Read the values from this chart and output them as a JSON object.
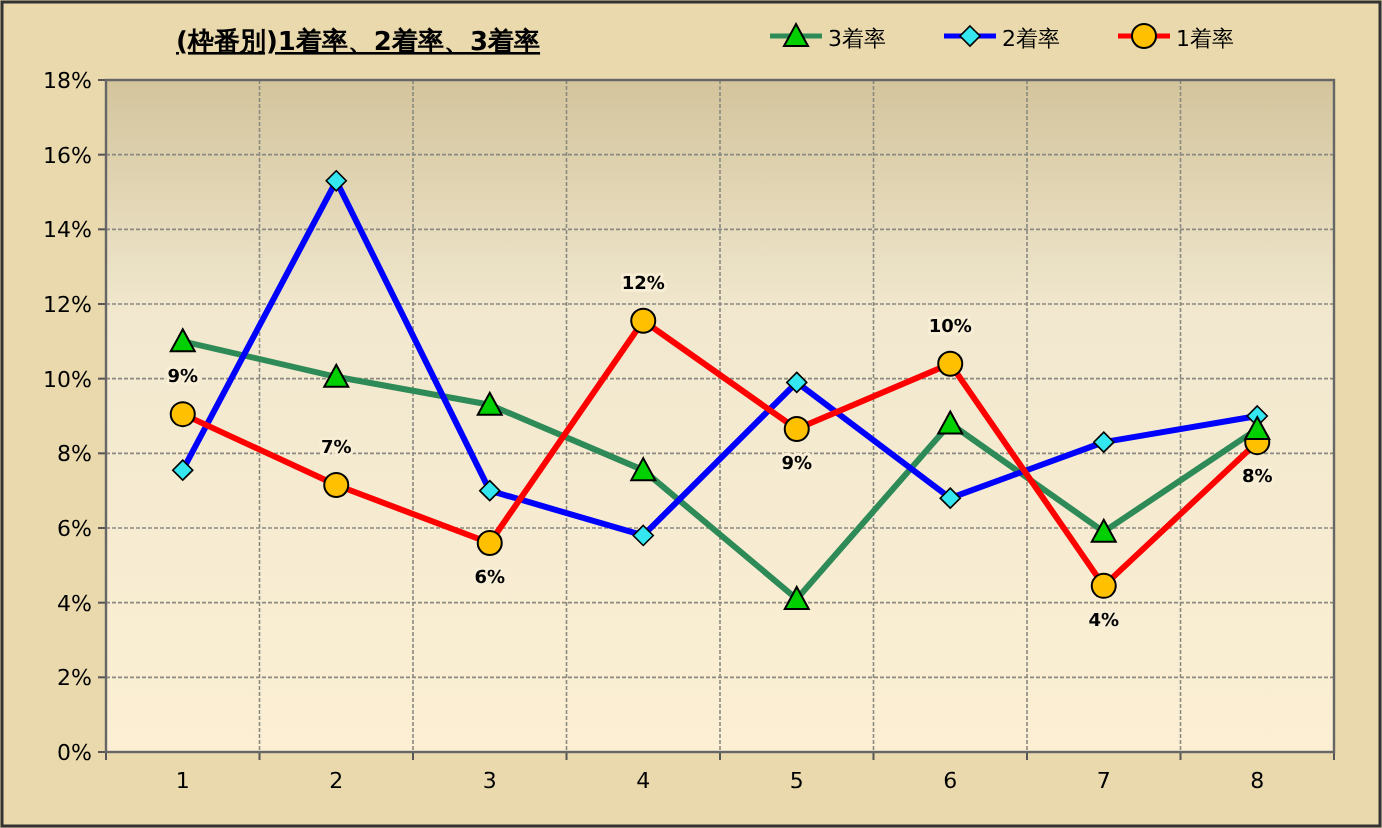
{
  "chart_data": {
    "type": "line",
    "title": "(枠番別)1着率、2着率、3着率",
    "categories": [
      "1",
      "2",
      "3",
      "4",
      "5",
      "6",
      "7",
      "8"
    ],
    "series": [
      {
        "name": "3着率",
        "color": "#2e8b57",
        "marker": "triangle",
        "values": [
          11.0,
          10.05,
          9.3,
          7.55,
          4.1,
          8.8,
          5.9,
          8.65
        ]
      },
      {
        "name": "2着率",
        "color": "#0000ff",
        "marker": "diamond",
        "values": [
          7.55,
          15.3,
          7.0,
          5.8,
          9.9,
          6.8,
          8.3,
          9.0
        ]
      },
      {
        "name": "1着率",
        "color": "#ff0000",
        "marker": "circle",
        "values": [
          9.05,
          7.15,
          5.6,
          11.55,
          8.65,
          10.4,
          4.45,
          8.3
        ],
        "value_labels": [
          "9%",
          "7%",
          "6%",
          "12%",
          "9%",
          "10%",
          "4%",
          "8%"
        ]
      }
    ],
    "ylim": [
      0,
      18
    ],
    "yticks": [
      {
        "value": 0,
        "label": "0%"
      },
      {
        "value": 2,
        "label": "2%"
      },
      {
        "value": 4,
        "label": "4%"
      },
      {
        "value": 6,
        "label": "6%"
      },
      {
        "value": 8,
        "label": "8%"
      },
      {
        "value": 10,
        "label": "10%"
      },
      {
        "value": 12,
        "label": "12%"
      },
      {
        "value": 14,
        "label": "14%"
      },
      {
        "value": 16,
        "label": "16%"
      },
      {
        "value": 18,
        "label": "18%"
      }
    ],
    "grid": true,
    "legend": "top right",
    "line_style": "solid"
  }
}
